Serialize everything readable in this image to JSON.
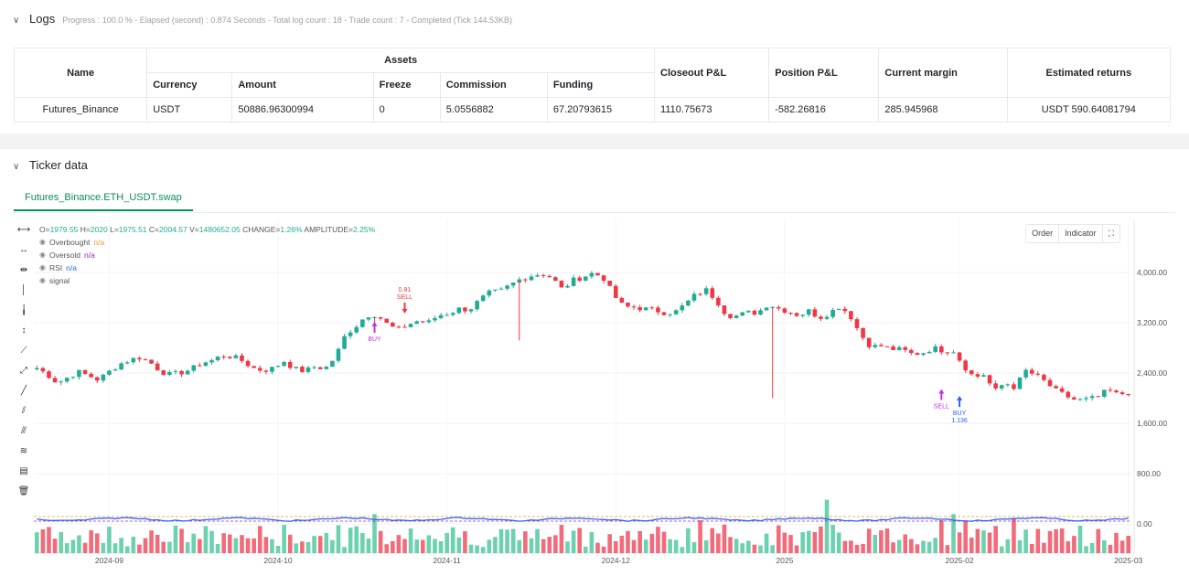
{
  "logs": {
    "title": "Logs",
    "meta": "Progress : 100.0 % - Elapsed (second) : 0.874 Seconds - Total log count : 18 - Trade count : 7 - Completed (Tick 144.53KB)",
    "table": {
      "col_name": "Name",
      "col_assets": "Assets",
      "col_closeout": "Closeout P&L",
      "col_position": "Position P&L",
      "col_margin": "Current margin",
      "col_returns": "Estimated returns",
      "sub_currency": "Currency",
      "sub_amount": "Amount",
      "sub_freeze": "Freeze",
      "sub_commission": "Commission",
      "sub_funding": "Funding",
      "row": {
        "name": "Futures_Binance",
        "currency": "USDT",
        "amount": "50886.96300994",
        "freeze": "0",
        "commission": "5.0556882",
        "funding": "67.20793615",
        "closeout": "1110.75673",
        "position": "-582.26816",
        "margin": "285.945968",
        "returns": "USDT 590.64081794"
      }
    }
  },
  "ticker": {
    "title": "Ticker data",
    "tab": "Futures_Binance.ETH_USDT.swap",
    "buttons": {
      "order": "Order",
      "indicator": "Indicator",
      "expand": "⛶"
    },
    "legend": {
      "o_label": "O=",
      "o": "1979.55",
      "h_label": "H=",
      "h": "2020",
      "l_label": "L=",
      "l": "1975.51",
      "c_label": "C=",
      "c": "2004.57",
      "v_label": "V=",
      "v": "1480652.05",
      "chg_label": "CHANGE=",
      "chg": "1.26%",
      "amp_label": "AMPLITUDE=",
      "amp": "2.25%",
      "overbought": "Overbought",
      "overbought_val": "n/a",
      "oversold": "Oversold",
      "oversold_val": "n/a",
      "rsi": "RSI",
      "rsi_val": "n/a",
      "signal": "signal"
    }
  },
  "chart_data": {
    "type": "candlestick",
    "y_ticks": [
      "4,000.00",
      "3,200.00",
      "2,400.00",
      "1,600.00",
      "800.00",
      "0.00"
    ],
    "y_tick_values": [
      4000,
      3200,
      2400,
      1600,
      800,
      0
    ],
    "x_ticks": [
      "2024-09",
      "2024-10",
      "2024-11",
      "2024-12",
      "2025",
      "2025-02",
      "2025-03"
    ],
    "x_tick_index": [
      12,
      40,
      68,
      96,
      124,
      153,
      181
    ],
    "close_path": [
      2480,
      2380,
      2240,
      2330,
      2420,
      2360,
      2290,
      2420,
      2540,
      2610,
      2650,
      2570,
      2430,
      2370,
      2410,
      2460,
      2560,
      2600,
      2680,
      2660,
      2590,
      2480,
      2440,
      2480,
      2590,
      2470,
      2430,
      2500,
      2470,
      2660,
      3020,
      3150,
      3320,
      3330,
      3180,
      3080,
      3170,
      3230,
      3200,
      3320,
      3350,
      3420,
      3410,
      3560,
      3680,
      3700,
      3800,
      3900,
      3950,
      3980,
      3920,
      3730,
      3870,
      3930,
      3990,
      3920,
      3640,
      3450,
      3450,
      3420,
      3400,
      3360,
      3370,
      3500,
      3650,
      3720,
      3560,
      3320,
      3310,
      3360,
      3360,
      3500,
      3430,
      3380,
      3320,
      3390,
      3280,
      3360,
      3470,
      3310,
      3010,
      2820,
      2830,
      2780,
      2770,
      2700,
      2720,
      2800,
      2760,
      2760,
      2520,
      2330,
      2380,
      2100,
      2250,
      2170,
      2440,
      2360,
      2250,
      2110,
      2030,
      1960,
      1980,
      2010,
      2130,
      2050,
      2100
    ],
    "markers": [
      {
        "label": "BUY",
        "dir": "up-arrow-purple",
        "idx": 56,
        "price": 3260
      },
      {
        "label": "SELL",
        "dir": "down-arrow-red",
        "idx": 61,
        "price": 3290,
        "value": "0.81"
      },
      {
        "label": "SELL",
        "dir": "up-arrow-purple",
        "idx": 150,
        "price": 2190
      },
      {
        "label": "BUY",
        "dir": "up-arrow-blue",
        "idx": 153,
        "price": 2080,
        "value": "1.136"
      }
    ]
  }
}
